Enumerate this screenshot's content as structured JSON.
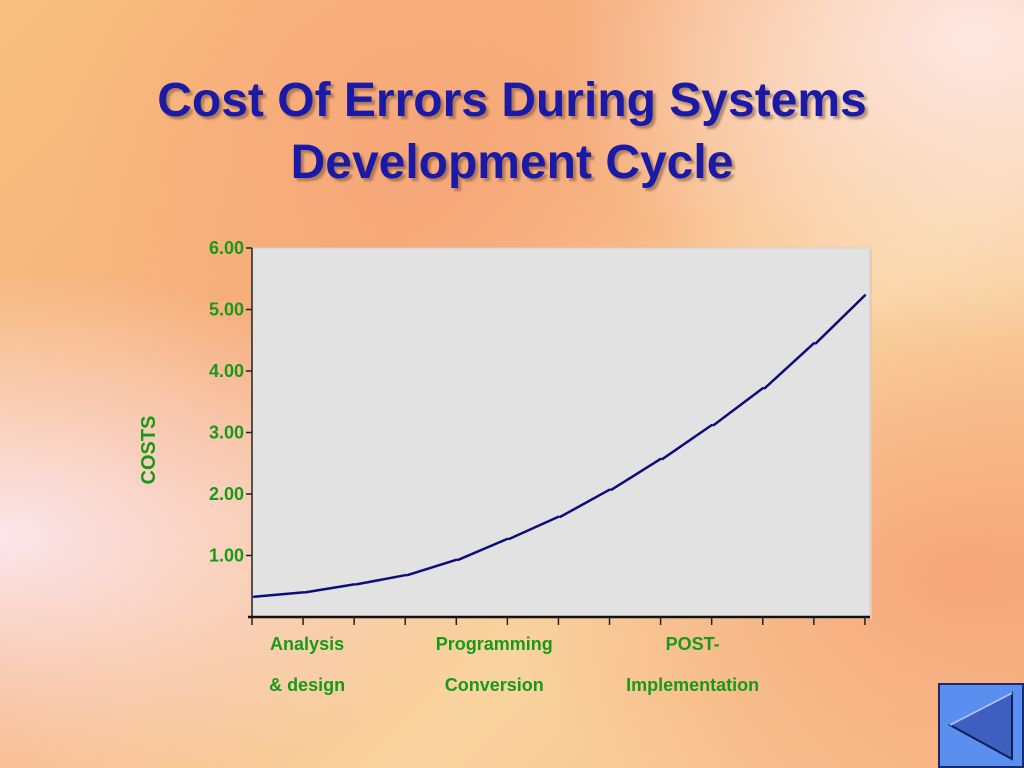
{
  "slide": {
    "title_line1": "Cost Of Errors During Systems",
    "title_line2": "Development Cycle"
  },
  "chart_data": {
    "type": "line",
    "title": "",
    "ylabel": "COSTS",
    "xlabel": "",
    "ylim": [
      0,
      6
    ],
    "y_ticks": [
      "6.00",
      "5.00",
      "4.00",
      "3.00",
      "2.00",
      "1.00"
    ],
    "x_tick_count": 12,
    "category_labels": [
      {
        "line1": "Analysis",
        "line2": "& design",
        "tick": 1
      },
      {
        "line1": "Programming",
        "line2": "Conversion",
        "tick": 4
      },
      {
        "line1": "POST-",
        "line2": "Implementation",
        "tick": 8
      }
    ],
    "series": [
      {
        "color": "#0d0d7a",
        "points": [
          [
            0,
            0.33
          ],
          [
            1,
            0.4
          ],
          [
            2,
            0.53
          ],
          [
            3,
            0.68
          ],
          [
            4,
            0.93
          ],
          [
            5,
            1.27
          ],
          [
            6,
            1.63
          ],
          [
            7,
            2.07
          ],
          [
            8,
            2.57
          ],
          [
            9,
            3.12
          ],
          [
            10,
            3.72
          ],
          [
            11,
            4.45
          ],
          [
            12,
            5.23
          ]
        ]
      }
    ],
    "grid": false,
    "plot_background": "#e2e2e2"
  },
  "nav": {
    "back_icon": "triangle-left-icon"
  }
}
